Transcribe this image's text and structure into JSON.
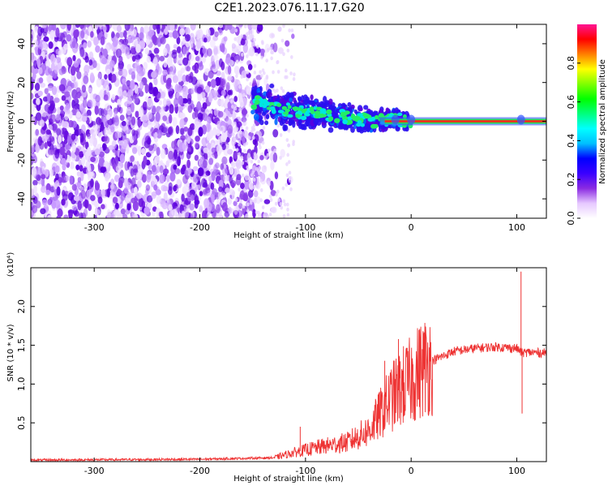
{
  "title": "C2E1.2023.076.11.17.G20",
  "chart_data": [
    {
      "type": "heatmap",
      "xlabel": "Height of straight line (km)",
      "ylabel": "Frequency (Hz)",
      "xlim": [
        -360,
        128
      ],
      "ylim": [
        -50,
        50
      ],
      "xticks": [
        "-300",
        "-200",
        "-100",
        "0",
        "100"
      ],
      "yticks": [
        "-40",
        "-20",
        "0",
        "20",
        "40"
      ],
      "colorbar": {
        "label": "Normalized spectral amplitude",
        "range": [
          0,
          1
        ],
        "ticks": [
          "0.0",
          "0.2",
          "0.4",
          "0.6",
          "0.8"
        ],
        "colors": [
          "#ffffff",
          "#e6c8ff",
          "#8a2be2",
          "#3a00ff",
          "#0000ff",
          "#00bfff",
          "#00ffff",
          "#00ff7f",
          "#00ff00",
          "#7fff00",
          "#ffff00",
          "#ff7f00",
          "#ff0000",
          "#ff1493"
        ]
      },
      "trace": {
        "x": [
          -175,
          -150,
          -130,
          -110,
          -90,
          -70,
          -50,
          -35,
          -25,
          -10,
          0,
          20,
          60,
          100,
          128
        ],
        "y": [
          12,
          10,
          8,
          5,
          4,
          3,
          1,
          0,
          1,
          1,
          0,
          0,
          0,
          0,
          0
        ]
      },
      "noise_region": [
        -360,
        -130
      ]
    },
    {
      "type": "line",
      "xlabel": "Height of straight line (km)",
      "ylabel": "SNR (10 * v/v)",
      "multiplier": "(x10⁴)",
      "xlim": [
        -360,
        128
      ],
      "ylim": [
        0,
        2.5
      ],
      "xticks": [
        "-300",
        "-200",
        "-100",
        "0",
        "100"
      ],
      "yticks": [
        "0.5",
        "1.0",
        "1.5",
        "2.0"
      ],
      "color": "#ee3333",
      "envelope": {
        "x": [
          -360,
          -200,
          -130,
          -110,
          -90,
          -60,
          -40,
          -30,
          -20,
          -10,
          0,
          10,
          20,
          40,
          60,
          80,
          100,
          105,
          110,
          128
        ],
        "y": [
          0.02,
          0.03,
          0.05,
          0.12,
          0.18,
          0.25,
          0.4,
          0.6,
          0.8,
          0.95,
          1.05,
          1.2,
          1.3,
          1.42,
          1.46,
          1.48,
          1.46,
          1.4,
          1.41,
          1.4
        ]
      },
      "spikes": [
        {
          "x": 104,
          "y": 2.45
        },
        {
          "x": 105,
          "y": 0.62
        },
        {
          "x": -12,
          "y": 1.58
        },
        {
          "x": -25,
          "y": 1.3
        },
        {
          "x": -105,
          "y": 0.45
        }
      ]
    }
  ]
}
